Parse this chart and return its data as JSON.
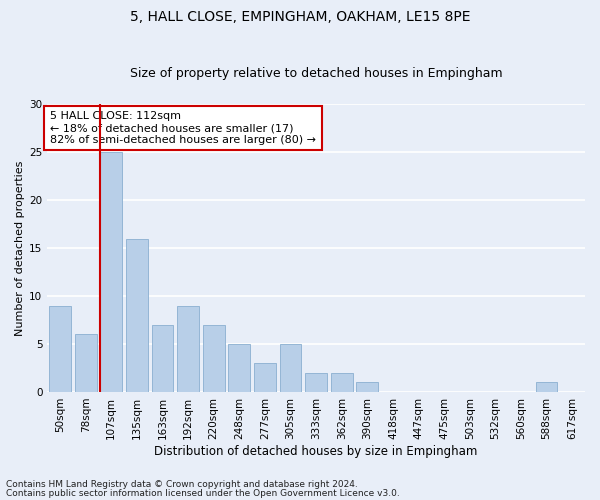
{
  "title": "5, HALL CLOSE, EMPINGHAM, OAKHAM, LE15 8PE",
  "subtitle": "Size of property relative to detached houses in Empingham",
  "xlabel": "Distribution of detached houses by size in Empingham",
  "ylabel": "Number of detached properties",
  "categories": [
    "50sqm",
    "78sqm",
    "107sqm",
    "135sqm",
    "163sqm",
    "192sqm",
    "220sqm",
    "248sqm",
    "277sqm",
    "305sqm",
    "333sqm",
    "362sqm",
    "390sqm",
    "418sqm",
    "447sqm",
    "475sqm",
    "503sqm",
    "532sqm",
    "560sqm",
    "588sqm",
    "617sqm"
  ],
  "values": [
    9,
    6,
    25,
    16,
    7,
    9,
    7,
    5,
    3,
    5,
    2,
    2,
    1,
    0,
    0,
    0,
    0,
    0,
    0,
    1,
    0
  ],
  "bar_color": "#b8cfe8",
  "bar_edge_color": "#8aafd0",
  "marker_bar_index": 2,
  "marker_color": "#cc0000",
  "annotation_title": "5 HALL CLOSE: 112sqm",
  "annotation_line1": "← 18% of detached houses are smaller (17)",
  "annotation_line2": "82% of semi-detached houses are larger (80) →",
  "annotation_box_color": "#ffffff",
  "annotation_box_edge": "#cc0000",
  "ylim": [
    0,
    30
  ],
  "yticks": [
    0,
    5,
    10,
    15,
    20,
    25,
    30
  ],
  "footnote1": "Contains HM Land Registry data © Crown copyright and database right 2024.",
  "footnote2": "Contains public sector information licensed under the Open Government Licence v3.0.",
  "bg_color": "#e8eef8",
  "plot_bg_color": "#e8eef8",
  "grid_color": "#ffffff",
  "title_fontsize": 10,
  "subtitle_fontsize": 9,
  "xlabel_fontsize": 8.5,
  "ylabel_fontsize": 8,
  "tick_fontsize": 7.5,
  "footnote_fontsize": 6.5,
  "annotation_fontsize": 8
}
